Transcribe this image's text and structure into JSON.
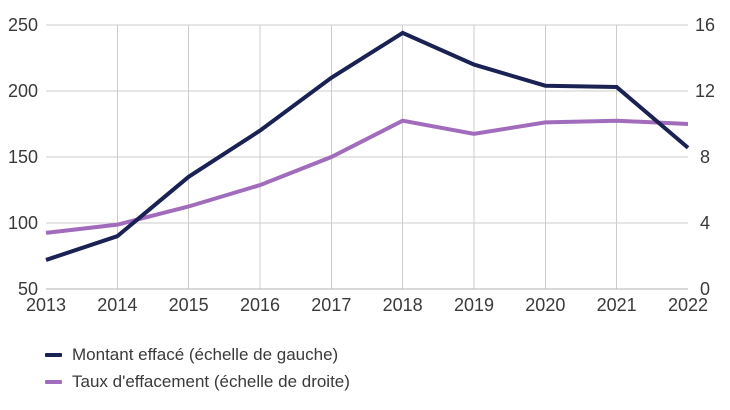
{
  "chart_data": {
    "type": "line",
    "x": [
      "2013",
      "2014",
      "2015",
      "2016",
      "2017",
      "2018",
      "2019",
      "2020",
      "2021",
      "2022"
    ],
    "series": [
      {
        "name": "Montant effacé (échelle de gauche)",
        "axis": "left",
        "color": "#1a2153",
        "values": [
          72,
          90,
          135,
          170,
          210,
          244,
          220,
          204,
          203,
          157
        ]
      },
      {
        "name": "Taux d'effacement (échelle de droite)",
        "axis": "right",
        "color": "#a26cbc",
        "values": [
          3.4,
          3.9,
          5.0,
          6.3,
          8.0,
          10.2,
          9.4,
          10.1,
          10.2,
          10.0
        ]
      }
    ],
    "left_axis": {
      "min": 50,
      "max": 250,
      "ticks": [
        50,
        100,
        150,
        200,
        250
      ]
    },
    "right_axis": {
      "min": 0,
      "max": 16,
      "ticks": [
        0,
        4,
        8,
        12,
        16
      ]
    },
    "grid": {
      "horizontal": true,
      "vertical_years": [
        "2014",
        "2015",
        "2016",
        "2017",
        "2018",
        "2019",
        "2020",
        "2021"
      ]
    },
    "legend_position": "bottom-left"
  },
  "colors": {
    "grid": "#cccccc",
    "baseline": "#b0b0b0",
    "tick_text": "#3a3a3a",
    "background": "#ffffff"
  }
}
